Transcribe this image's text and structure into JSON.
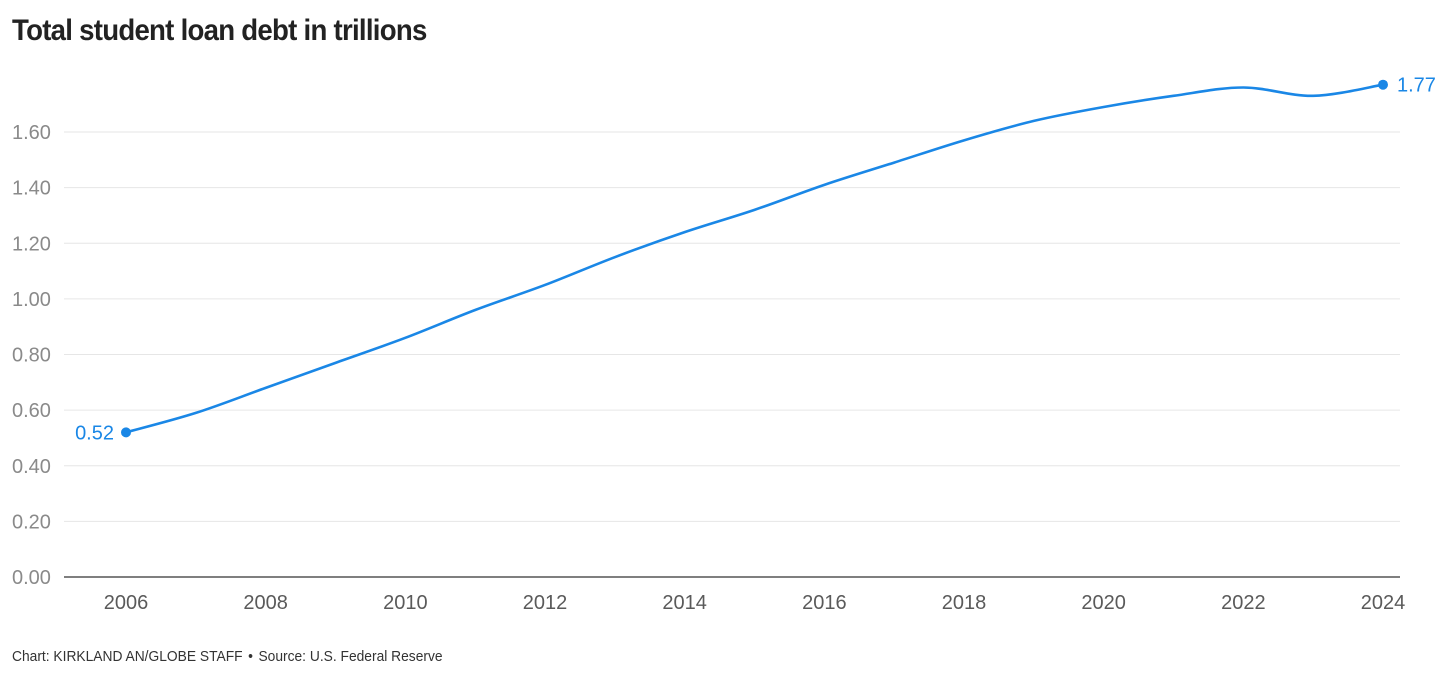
{
  "title": "Total student loan debt in trillions",
  "credit": {
    "chart": "Chart: KIRKLAND AN/GLOBE STAFF",
    "separator": "•",
    "source": "Source: U.S. Federal Reserve"
  },
  "colors": {
    "series": "#1a87e6",
    "grid": "#e6e6e6",
    "axis": "#333333",
    "tick_y": "#8a8a8a",
    "tick_x": "#5a5a5a"
  },
  "chart_data": {
    "type": "line",
    "title": "Total student loan debt in trillions",
    "xlabel": "",
    "ylabel": "",
    "xlim": [
      2006,
      2024
    ],
    "ylim": [
      0,
      1.8
    ],
    "grid": true,
    "y_ticks": [
      "0.00",
      "0.20",
      "0.40",
      "0.60",
      "0.80",
      "1.00",
      "1.20",
      "1.40",
      "1.60"
    ],
    "x_ticks": [
      "2006",
      "2008",
      "2010",
      "2012",
      "2014",
      "2016",
      "2018",
      "2020",
      "2022",
      "2024"
    ],
    "series": [
      {
        "x": [
          2006,
          2007,
          2008,
          2009,
          2010,
          2011,
          2012,
          2013,
          2014,
          2015,
          2016,
          2017,
          2018,
          2019,
          2020,
          2021,
          2022,
          2023,
          2024
        ],
        "values": [
          0.52,
          0.59,
          0.68,
          0.77,
          0.86,
          0.96,
          1.05,
          1.15,
          1.24,
          1.32,
          1.41,
          1.49,
          1.57,
          1.64,
          1.69,
          1.73,
          1.76,
          1.73,
          1.77
        ]
      }
    ],
    "annotations": [
      {
        "x": 2006,
        "y": 0.52,
        "label": "0.52",
        "position": "left"
      },
      {
        "x": 2024,
        "y": 1.77,
        "label": "1.77",
        "position": "right"
      }
    ]
  }
}
